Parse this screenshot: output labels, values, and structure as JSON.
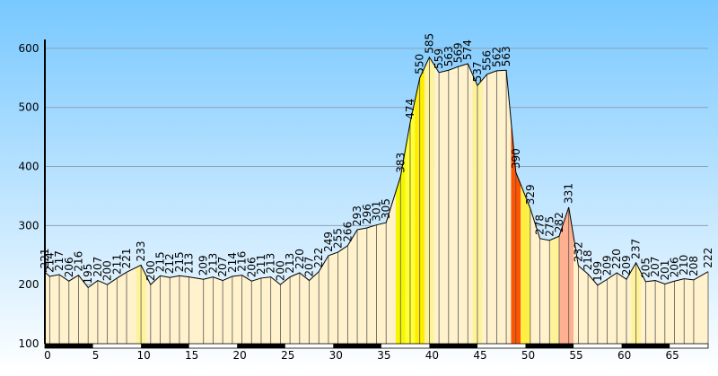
{
  "chart_data": {
    "type": "area",
    "title": "",
    "xlabel": "",
    "ylabel": "",
    "xlim": [
      0,
      69
    ],
    "ylim": [
      100,
      615
    ],
    "grid": true,
    "y_ticks": [
      100,
      200,
      300,
      400,
      500,
      600
    ],
    "x_ticks": [
      0,
      5,
      10,
      15,
      20,
      25,
      30,
      35,
      40,
      45,
      50,
      55,
      60,
      65
    ],
    "points": [
      {
        "x": 0,
        "y": 221
      },
      {
        "x": 0.5,
        "y": 214
      },
      {
        "x": 1.5,
        "y": 217
      },
      {
        "x": 2.5,
        "y": 206
      },
      {
        "x": 3.5,
        "y": 216
      },
      {
        "x": 4.5,
        "y": 195
      },
      {
        "x": 5.5,
        "y": 207
      },
      {
        "x": 6.5,
        "y": 200
      },
      {
        "x": 7.5,
        "y": 211
      },
      {
        "x": 8.5,
        "y": 221
      },
      {
        "x": 10,
        "y": 233
      },
      {
        "x": 11,
        "y": 200
      },
      {
        "x": 12,
        "y": 215
      },
      {
        "x": 13,
        "y": 212
      },
      {
        "x": 14,
        "y": 215
      },
      {
        "x": 15,
        "y": 213
      },
      {
        "x": 16.5,
        "y": 209
      },
      {
        "x": 17.5,
        "y": 213
      },
      {
        "x": 18.5,
        "y": 207
      },
      {
        "x": 19.5,
        "y": 214
      },
      {
        "x": 20.5,
        "y": 216
      },
      {
        "x": 21.5,
        "y": 206
      },
      {
        "x": 22.5,
        "y": 211
      },
      {
        "x": 23.5,
        "y": 213
      },
      {
        "x": 24.5,
        "y": 200
      },
      {
        "x": 25.5,
        "y": 213
      },
      {
        "x": 26.5,
        "y": 220
      },
      {
        "x": 27.5,
        "y": 207
      },
      {
        "x": 28.5,
        "y": 222
      },
      {
        "x": 29.5,
        "y": 249
      },
      {
        "x": 30.5,
        "y": 255
      },
      {
        "x": 31.5,
        "y": 266
      },
      {
        "x": 32.5,
        "y": 293
      },
      {
        "x": 33.5,
        "y": 296
      },
      {
        "x": 34.5,
        "y": 301
      },
      {
        "x": 35.5,
        "y": 305
      },
      {
        "x": 37,
        "y": 383
      },
      {
        "x": 38,
        "y": 474
      },
      {
        "x": 39,
        "y": 550
      },
      {
        "x": 40,
        "y": 585
      },
      {
        "x": 41,
        "y": 559
      },
      {
        "x": 42,
        "y": 563
      },
      {
        "x": 43,
        "y": 569
      },
      {
        "x": 44,
        "y": 574
      },
      {
        "x": 45,
        "y": 537
      },
      {
        "x": 46,
        "y": 556
      },
      {
        "x": 47,
        "y": 562
      },
      {
        "x": 48,
        "y": 563
      },
      {
        "x": 49,
        "y": 390
      },
      {
        "x": 50.5,
        "y": 329
      },
      {
        "x": 51.5,
        "y": 278
      },
      {
        "x": 52.5,
        "y": 275
      },
      {
        "x": 53.5,
        "y": 282
      },
      {
        "x": 54.5,
        "y": 331
      },
      {
        "x": 55.5,
        "y": 232
      },
      {
        "x": 56.5,
        "y": 218
      },
      {
        "x": 57.5,
        "y": 199
      },
      {
        "x": 58.5,
        "y": 209
      },
      {
        "x": 59.5,
        "y": 220
      },
      {
        "x": 60.5,
        "y": 209
      },
      {
        "x": 61.5,
        "y": 237
      },
      {
        "x": 62.5,
        "y": 205
      },
      {
        "x": 63.5,
        "y": 207
      },
      {
        "x": 64.5,
        "y": 201
      },
      {
        "x": 65.5,
        "y": 206
      },
      {
        "x": 66.5,
        "y": 210
      },
      {
        "x": 67.5,
        "y": 208
      },
      {
        "x": 69,
        "y": 222
      }
    ],
    "segments": [
      {
        "from": 0,
        "to": 9.5,
        "color": "#fff2cc"
      },
      {
        "from": 9.5,
        "to": 10.5,
        "color": "#fff39a"
      },
      {
        "from": 10.5,
        "to": 36.5,
        "color": "#fff2cc"
      },
      {
        "from": 36.5,
        "to": 37.5,
        "color": "#f6f600"
      },
      {
        "from": 37.5,
        "to": 38.5,
        "color": "#ffff33"
      },
      {
        "from": 38.5,
        "to": 39.5,
        "color": "#ffee00"
      },
      {
        "from": 39.5,
        "to": 40.5,
        "color": "#fff39a"
      },
      {
        "from": 40.5,
        "to": 44.5,
        "color": "#fff2cc"
      },
      {
        "from": 44.5,
        "to": 45.5,
        "color": "#fff39a"
      },
      {
        "from": 45.5,
        "to": 48.5,
        "color": "#fff2cc"
      },
      {
        "from": 48.5,
        "to": 49.5,
        "color": "#ff5500"
      },
      {
        "from": 49.5,
        "to": 50.5,
        "color": "#ffee44"
      },
      {
        "from": 50.5,
        "to": 52.5,
        "color": "#fff2cc"
      },
      {
        "from": 52.5,
        "to": 53.5,
        "color": "#fff39a"
      },
      {
        "from": 53.5,
        "to": 55,
        "color": "#ffb090"
      },
      {
        "from": 55,
        "to": 61,
        "color": "#fff2cc"
      },
      {
        "from": 61,
        "to": 62,
        "color": "#fff39a"
      },
      {
        "from": 62,
        "to": 69,
        "color": "#fff2cc"
      }
    ],
    "km_bands": [
      [
        0,
        5
      ],
      [
        10,
        15
      ],
      [
        20,
        25
      ],
      [
        30,
        35
      ],
      [
        40,
        45
      ],
      [
        50,
        55
      ],
      [
        60,
        65
      ]
    ],
    "colors": {
      "sky_top": "#78c8ff",
      "sky_bottom": "#ffffff",
      "outline": "#000000",
      "grid": "#8ea0b4"
    }
  }
}
